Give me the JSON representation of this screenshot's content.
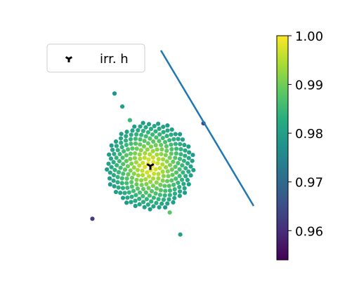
{
  "chart_data": {
    "type": "scatter",
    "title": "",
    "xlabel": "",
    "ylabel": "",
    "axes_visible": false,
    "legend": {
      "position": "top-left",
      "entries": [
        {
          "label": "irr. h",
          "marker": "tri_down",
          "color": "#000000"
        }
      ]
    },
    "highlight_point": {
      "name": "irr. h",
      "x": 0,
      "y": 0
    },
    "outer_points": [
      {
        "x": -1.7,
        "y": 3.45,
        "c": 0.978
      },
      {
        "x": -1.33,
        "y": 2.83,
        "c": 0.98
      },
      {
        "x": -0.97,
        "y": 2.18,
        "c": 0.985
      },
      {
        "x": 2.52,
        "y": 2.03,
        "c": 0.964
      },
      {
        "x": 0.92,
        "y": -2.21,
        "c": 0.988
      },
      {
        "x": 1.42,
        "y": -3.26,
        "c": 0.98
      },
      {
        "x": -2.75,
        "y": -2.51,
        "c": 0.962
      }
    ],
    "cluster": {
      "center": {
        "x": 0,
        "y": 0
      },
      "radius": 2.1,
      "color_at_center": 1.0,
      "color_at_edge": 0.979,
      "spiral": "sunflower",
      "approx_points": 280
    },
    "line": {
      "name": "",
      "color": "#1f77b4",
      "x": [
        0.5,
        4.9
      ],
      "y": [
        5.5,
        -1.9
      ]
    },
    "colorbar": {
      "colormap": "viridis",
      "range": [
        0.954,
        1.0
      ],
      "ticks": [
        "1.00",
        "0.99",
        "0.98",
        "0.97",
        "0.96"
      ],
      "tick_values": [
        1.0,
        0.99,
        0.98,
        0.97,
        0.96
      ]
    }
  }
}
